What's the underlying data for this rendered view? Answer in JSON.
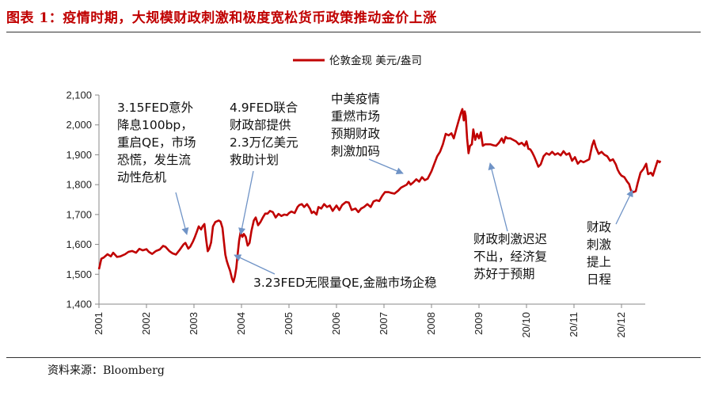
{
  "header": {
    "title": "图表 1：疫情时期，大规模财政刺激和极度宽松货币政策推动金价上涨"
  },
  "footer": {
    "source": "资料来源：Bloomberg"
  },
  "chart_data": {
    "type": "line",
    "title": "图表 1：疫情时期，大规模财政刺激和极度宽松货币政策推动金价上涨",
    "xlabel": "",
    "ylabel": "",
    "ylim": [
      1400,
      2100
    ],
    "yticks": [
      "1,400",
      "1,500",
      "1,600",
      "1,700",
      "1,800",
      "1,900",
      "2,000",
      "2,100"
    ],
    "xticks": [
      "2020/01",
      "2020/02",
      "2020/03",
      "2020/04",
      "2020/05",
      "2020/06",
      "2020/07",
      "2020/08",
      "2020/09",
      "2020/10",
      "2020/11",
      "2020/12"
    ],
    "xtick_labels": [
      "2001",
      "2002",
      "2003",
      "2004",
      "2005",
      "2006",
      "2007",
      "2008",
      "2009",
      "20/10",
      "20/11",
      "20/12"
    ],
    "legend": {
      "label": "伦敦金现 美元/盎司",
      "position": "top-right"
    },
    "series": [
      {
        "name": "伦敦金现 美元/盎司",
        "color": "#c00000",
        "points": [
          [
            0.0,
            1517
          ],
          [
            0.05,
            1552
          ],
          [
            0.1,
            1556
          ],
          [
            0.18,
            1567
          ],
          [
            0.25,
            1560
          ],
          [
            0.3,
            1572
          ],
          [
            0.38,
            1558
          ],
          [
            0.45,
            1560
          ],
          [
            0.55,
            1567
          ],
          [
            0.62,
            1575
          ],
          [
            0.7,
            1578
          ],
          [
            0.78,
            1572
          ],
          [
            0.85,
            1585
          ],
          [
            0.92,
            1580
          ],
          [
            1.0,
            1584
          ],
          [
            1.05,
            1575
          ],
          [
            1.12,
            1568
          ],
          [
            1.2,
            1578
          ],
          [
            1.28,
            1583
          ],
          [
            1.35,
            1595
          ],
          [
            1.4,
            1592
          ],
          [
            1.48,
            1578
          ],
          [
            1.55,
            1570
          ],
          [
            1.62,
            1566
          ],
          [
            1.7,
            1582
          ],
          [
            1.78,
            1600
          ],
          [
            1.82,
            1605
          ],
          [
            1.88,
            1586
          ],
          [
            1.92,
            1592
          ],
          [
            1.98,
            1610
          ],
          [
            2.02,
            1625
          ],
          [
            2.06,
            1642
          ],
          [
            2.1,
            1660
          ],
          [
            2.15,
            1650
          ],
          [
            2.18,
            1660
          ],
          [
            2.22,
            1668
          ],
          [
            2.26,
            1612
          ],
          [
            2.29,
            1577
          ],
          [
            2.32,
            1585
          ],
          [
            2.36,
            1606
          ],
          [
            2.4,
            1660
          ],
          [
            2.45,
            1675
          ],
          [
            2.52,
            1680
          ],
          [
            2.56,
            1676
          ],
          [
            2.6,
            1655
          ],
          [
            2.63,
            1610
          ],
          [
            2.66,
            1566
          ],
          [
            2.69,
            1545
          ],
          [
            2.72,
            1530
          ],
          [
            2.76,
            1512
          ],
          [
            2.8,
            1486
          ],
          [
            2.83,
            1474
          ],
          [
            2.86,
            1492
          ],
          [
            2.89,
            1520
          ],
          [
            2.92,
            1567
          ],
          [
            2.95,
            1612
          ],
          [
            2.98,
            1640
          ],
          [
            3.02,
            1625
          ],
          [
            3.05,
            1635
          ],
          [
            3.09,
            1625
          ],
          [
            3.13,
            1596
          ],
          [
            3.17,
            1605
          ],
          [
            3.21,
            1645
          ],
          [
            3.26,
            1680
          ],
          [
            3.3,
            1690
          ],
          [
            3.35,
            1664
          ],
          [
            3.4,
            1675
          ],
          [
            3.45,
            1690
          ],
          [
            3.5,
            1703
          ],
          [
            3.55,
            1703
          ],
          [
            3.6,
            1712
          ],
          [
            3.66,
            1708
          ],
          [
            3.72,
            1690
          ],
          [
            3.78,
            1702
          ],
          [
            3.84,
            1695
          ],
          [
            3.9,
            1700
          ],
          [
            3.96,
            1698
          ],
          [
            4.0,
            1705
          ],
          [
            4.05,
            1710
          ],
          [
            4.12,
            1705
          ],
          [
            4.18,
            1725
          ],
          [
            4.22,
            1732
          ],
          [
            4.27,
            1735
          ],
          [
            4.32,
            1725
          ],
          [
            4.38,
            1735
          ],
          [
            4.44,
            1720
          ],
          [
            4.48,
            1705
          ],
          [
            4.52,
            1710
          ],
          [
            4.58,
            1700
          ],
          [
            4.62,
            1725
          ],
          [
            4.68,
            1720
          ],
          [
            4.74,
            1735
          ],
          [
            4.8,
            1725
          ],
          [
            4.86,
            1730
          ],
          [
            4.92,
            1712
          ],
          [
            5.0,
            1730
          ],
          [
            5.06,
            1715
          ],
          [
            5.12,
            1732
          ],
          [
            5.2,
            1742
          ],
          [
            5.26,
            1740
          ],
          [
            5.32,
            1715
          ],
          [
            5.4,
            1720
          ],
          [
            5.46,
            1708
          ],
          [
            5.52,
            1720
          ],
          [
            5.58,
            1725
          ],
          [
            5.65,
            1735
          ],
          [
            5.72,
            1725
          ],
          [
            5.78,
            1744
          ],
          [
            5.84,
            1748
          ],
          [
            5.9,
            1745
          ],
          [
            5.96,
            1762
          ],
          [
            6.02,
            1775
          ],
          [
            6.1,
            1775
          ],
          [
            6.16,
            1772
          ],
          [
            6.22,
            1770
          ],
          [
            6.3,
            1780
          ],
          [
            6.36,
            1790
          ],
          [
            6.42,
            1795
          ],
          [
            6.48,
            1800
          ],
          [
            6.52,
            1810
          ],
          [
            6.56,
            1800
          ],
          [
            6.62,
            1808
          ],
          [
            6.68,
            1818
          ],
          [
            6.74,
            1810
          ],
          [
            6.8,
            1825
          ],
          [
            6.86,
            1815
          ],
          [
            6.92,
            1820
          ],
          [
            7.0,
            1845
          ],
          [
            7.06,
            1870
          ],
          [
            7.12,
            1895
          ],
          [
            7.18,
            1910
          ],
          [
            7.24,
            1935
          ],
          [
            7.3,
            1970
          ],
          [
            7.36,
            1965
          ],
          [
            7.42,
            1972
          ],
          [
            7.47,
            1955
          ],
          [
            7.52,
            1985
          ],
          [
            7.57,
            2013
          ],
          [
            7.62,
            2040
          ],
          [
            7.65,
            2053
          ],
          [
            7.68,
            2015
          ],
          [
            7.7,
            2045
          ],
          [
            7.72,
            2030
          ],
          [
            7.75,
            1955
          ],
          [
            7.78,
            1905
          ],
          [
            7.81,
            1930
          ],
          [
            7.85,
            1935
          ],
          [
            7.88,
            1985
          ],
          [
            7.92,
            1950
          ],
          [
            7.96,
            1970
          ],
          [
            8.0,
            1955
          ],
          [
            8.04,
            1975
          ],
          [
            8.08,
            1930
          ],
          [
            8.13,
            1935
          ],
          [
            8.18,
            1935
          ],
          [
            8.24,
            1935
          ],
          [
            8.3,
            1932
          ],
          [
            8.36,
            1930
          ],
          [
            8.42,
            1940
          ],
          [
            8.48,
            1955
          ],
          [
            8.52,
            1940
          ],
          [
            8.56,
            1960
          ],
          [
            8.6,
            1955
          ],
          [
            8.66,
            1955
          ],
          [
            8.72,
            1950
          ],
          [
            8.78,
            1945
          ],
          [
            8.84,
            1935
          ],
          [
            8.9,
            1940
          ],
          [
            8.96,
            1930
          ],
          [
            9.0,
            1945
          ],
          [
            9.04,
            1920
          ],
          [
            9.08,
            1918
          ],
          [
            9.12,
            1908
          ],
          [
            9.16,
            1895
          ],
          [
            9.2,
            1880
          ],
          [
            9.25,
            1860
          ],
          [
            9.3,
            1868
          ],
          [
            9.36,
            1895
          ],
          [
            9.42,
            1905
          ],
          [
            9.48,
            1900
          ],
          [
            9.54,
            1910
          ],
          [
            9.6,
            1900
          ],
          [
            9.66,
            1905
          ],
          [
            9.72,
            1898
          ],
          [
            9.78,
            1912
          ],
          [
            9.84,
            1900
          ],
          [
            9.9,
            1905
          ],
          [
            9.96,
            1880
          ],
          [
            10.02,
            1892
          ],
          [
            10.08,
            1870
          ],
          [
            10.14,
            1880
          ],
          [
            10.2,
            1875
          ],
          [
            10.26,
            1880
          ],
          [
            10.32,
            1885
          ],
          [
            10.38,
            1930
          ],
          [
            10.42,
            1948
          ],
          [
            10.46,
            1925
          ],
          [
            10.52,
            1903
          ],
          [
            10.58,
            1910
          ],
          [
            10.64,
            1900
          ],
          [
            10.7,
            1895
          ],
          [
            10.76,
            1880
          ],
          [
            10.82,
            1885
          ],
          [
            10.88,
            1868
          ],
          [
            10.92,
            1850
          ],
          [
            10.96,
            1838
          ],
          [
            11.0,
            1830
          ],
          [
            11.06,
            1825
          ],
          [
            11.12,
            1810
          ],
          [
            11.16,
            1802
          ],
          [
            11.2,
            1780
          ],
          [
            11.25,
            1775
          ],
          [
            11.3,
            1778
          ],
          [
            11.34,
            1805
          ],
          [
            11.4,
            1840
          ],
          [
            11.46,
            1852
          ],
          [
            11.52,
            1870
          ],
          [
            11.56,
            1835
          ],
          [
            11.62,
            1840
          ],
          [
            11.66,
            1830
          ],
          [
            11.72,
            1860
          ],
          [
            11.76,
            1880
          ],
          [
            11.8,
            1875
          ],
          [
            11.82,
            1880
          ]
        ]
      }
    ],
    "annotations": [
      {
        "id": "fed-0315",
        "lines": [
          "3.15FED意外",
          "降息100bp，",
          "重启QE，市场",
          "恐慌，发生流",
          "动性危机"
        ]
      },
      {
        "id": "fed-0409",
        "lines": [
          "4.9FED联合",
          "财政部提供",
          "2.3万亿美元",
          "救助计划"
        ]
      },
      {
        "id": "fed-0323",
        "lines": [
          "3.23FED无限量QE,金融市场企稳"
        ]
      },
      {
        "id": "covid-resurge",
        "lines": [
          "中美疫情",
          "重燃市场",
          "预期财政",
          "刺激加码"
        ]
      },
      {
        "id": "stimulus-delay",
        "lines": [
          "财政刺激迟迟",
          "不出，经济复",
          "苏好于预期"
        ]
      },
      {
        "id": "stimulus-agenda",
        "lines": [
          "财政",
          "刺激",
          "提上",
          "日程"
        ]
      }
    ]
  }
}
